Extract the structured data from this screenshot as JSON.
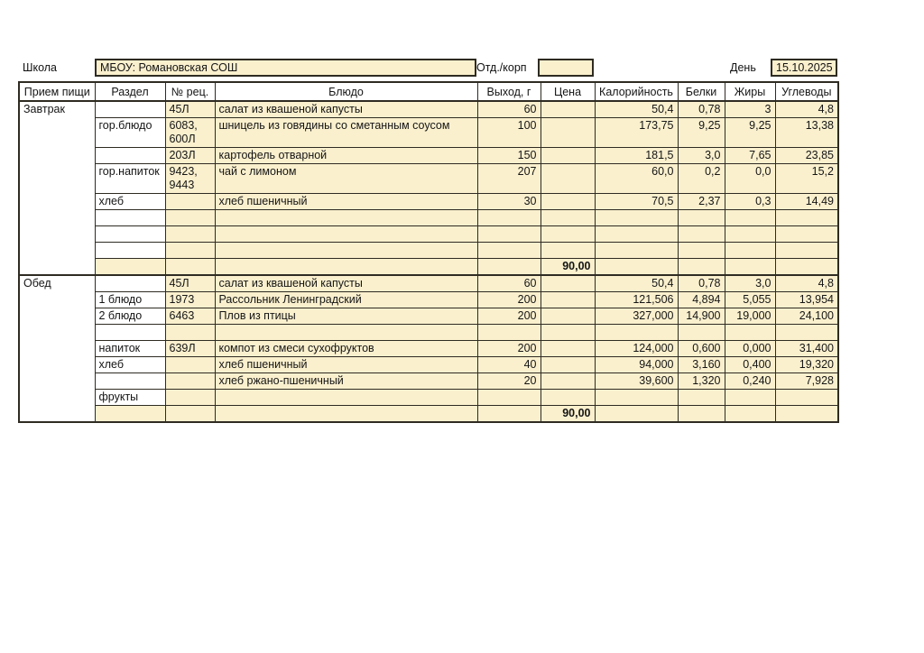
{
  "colors": {
    "cell_fill": "#FAF0CE",
    "border": "#2e2b22",
    "background": "#ffffff"
  },
  "form": {
    "school_label": "Школа",
    "school_value": "МБОУ: Романовская СОШ",
    "dept_label": "Отд./корп",
    "dept_value": "",
    "day_label": "День",
    "day_value": "15.10.2025"
  },
  "table": {
    "headers": [
      "Прием пищи",
      "Раздел",
      "№ рец.",
      "Блюдо",
      "Выход, г",
      "Цена",
      "Калорийность",
      "Белки",
      "Жиры",
      "Углеводы"
    ],
    "sections": [
      {
        "meal": "Завтрак",
        "rows": [
          {
            "razdel": "",
            "rec": "45Л",
            "bludo": "салат из квашеной капусты",
            "vyhod": "60",
            "cena": "",
            "kal": "50,4",
            "belki": "0,78",
            "zhiry": "3",
            "uglevody": "4,8"
          },
          {
            "razdel": "гор.блюдо",
            "rec": "6083,\n600Л",
            "bludo": "шницель из говядины со сметанным соусом",
            "vyhod": "100",
            "cena": "",
            "kal": "173,75",
            "belki": "9,25",
            "zhiry": "9,25",
            "uglevody": "13,38"
          },
          {
            "razdel": "",
            "rec": "203Л",
            "bludo": "картофель отварной",
            "vyhod": "150",
            "cena": "",
            "kal": "181,5",
            "belki": "3,0",
            "zhiry": "7,65",
            "uglevody": "23,85"
          },
          {
            "razdel": "гор.напиток",
            "rec": "9423,\n9443",
            "bludo": "чай с лимоном",
            "vyhod": "207",
            "cena": "",
            "kal": "60,0",
            "belki": "0,2",
            "zhiry": "0,0",
            "uglevody": "15,2"
          },
          {
            "razdel": "хлеб",
            "rec": "",
            "bludo": "хлеб пшеничный",
            "vyhod": "30",
            "cena": "",
            "kal": "70,5",
            "belki": "2,37",
            "zhiry": "0,3",
            "uglevody": "14,49"
          },
          {
            "razdel": "",
            "rec": "",
            "bludo": "",
            "vyhod": "",
            "cena": "",
            "kal": "",
            "belki": "",
            "zhiry": "",
            "uglevody": ""
          },
          {
            "razdel": "",
            "rec": "",
            "bludo": "",
            "vyhod": "",
            "cena": "",
            "kal": "",
            "belki": "",
            "zhiry": "",
            "uglevody": ""
          },
          {
            "razdel": "",
            "rec": "",
            "bludo": "",
            "vyhod": "",
            "cena": "",
            "kal": "",
            "belki": "",
            "zhiry": "",
            "uglevody": ""
          },
          {
            "razdel": "",
            "rec": "",
            "bludo": "",
            "vyhod": "",
            "cena": "90,00",
            "kal": "",
            "belki": "",
            "zhiry": "",
            "uglevody": "",
            "total": true
          }
        ]
      },
      {
        "meal": "Обед",
        "rows": [
          {
            "razdel": "",
            "rec": "45Л",
            "bludo": "салат из квашеной капусты",
            "vyhod": "60",
            "cena": "",
            "kal": "50,4",
            "belki": "0,78",
            "zhiry": "3,0",
            "uglevody": "4,8"
          },
          {
            "razdel": "1 блюдо",
            "rec": "1973",
            "bludo": "Рассольник Ленинградский",
            "vyhod": "200",
            "cena": "",
            "kal": "121,506",
            "belki": "4,894",
            "zhiry": "5,055",
            "uglevody": "13,954"
          },
          {
            "razdel": "2 блюдо",
            "rec": "6463",
            "bludo": "Плов из птицы",
            "vyhod": "200",
            "cena": "",
            "kal": "327,000",
            "belki": "14,900",
            "zhiry": "19,000",
            "uglevody": "24,100"
          },
          {
            "razdel": "",
            "rec": "",
            "bludo": "",
            "vyhod": "",
            "cena": "",
            "kal": "",
            "belki": "",
            "zhiry": "",
            "uglevody": ""
          },
          {
            "razdel": "напиток",
            "rec": "639Л",
            "bludo": "компот из смеси сухофруктов",
            "vyhod": "200",
            "cena": "",
            "kal": "124,000",
            "belki": "0,600",
            "zhiry": "0,000",
            "uglevody": "31,400"
          },
          {
            "razdel": "хлеб",
            "rec": "",
            "bludo": "хлеб пшеничный",
            "vyhod": "40",
            "cena": "",
            "kal": "94,000",
            "belki": "3,160",
            "zhiry": "0,400",
            "uglevody": "19,320"
          },
          {
            "razdel": "",
            "rec": "",
            "bludo": "хлеб ржано-пшеничный",
            "vyhod": "20",
            "cena": "",
            "kal": "39,600",
            "belki": "1,320",
            "zhiry": "0,240",
            "uglevody": "7,928"
          },
          {
            "razdel": "фрукты",
            "rec": "",
            "bludo": "",
            "vyhod": "",
            "cena": "",
            "kal": "",
            "belki": "",
            "zhiry": "",
            "uglevody": ""
          },
          {
            "razdel": "",
            "rec": "",
            "bludo": "",
            "vyhod": "",
            "cena": "90,00",
            "kal": "",
            "belki": "",
            "zhiry": "",
            "uglevody": "",
            "total": true
          }
        ]
      }
    ]
  }
}
